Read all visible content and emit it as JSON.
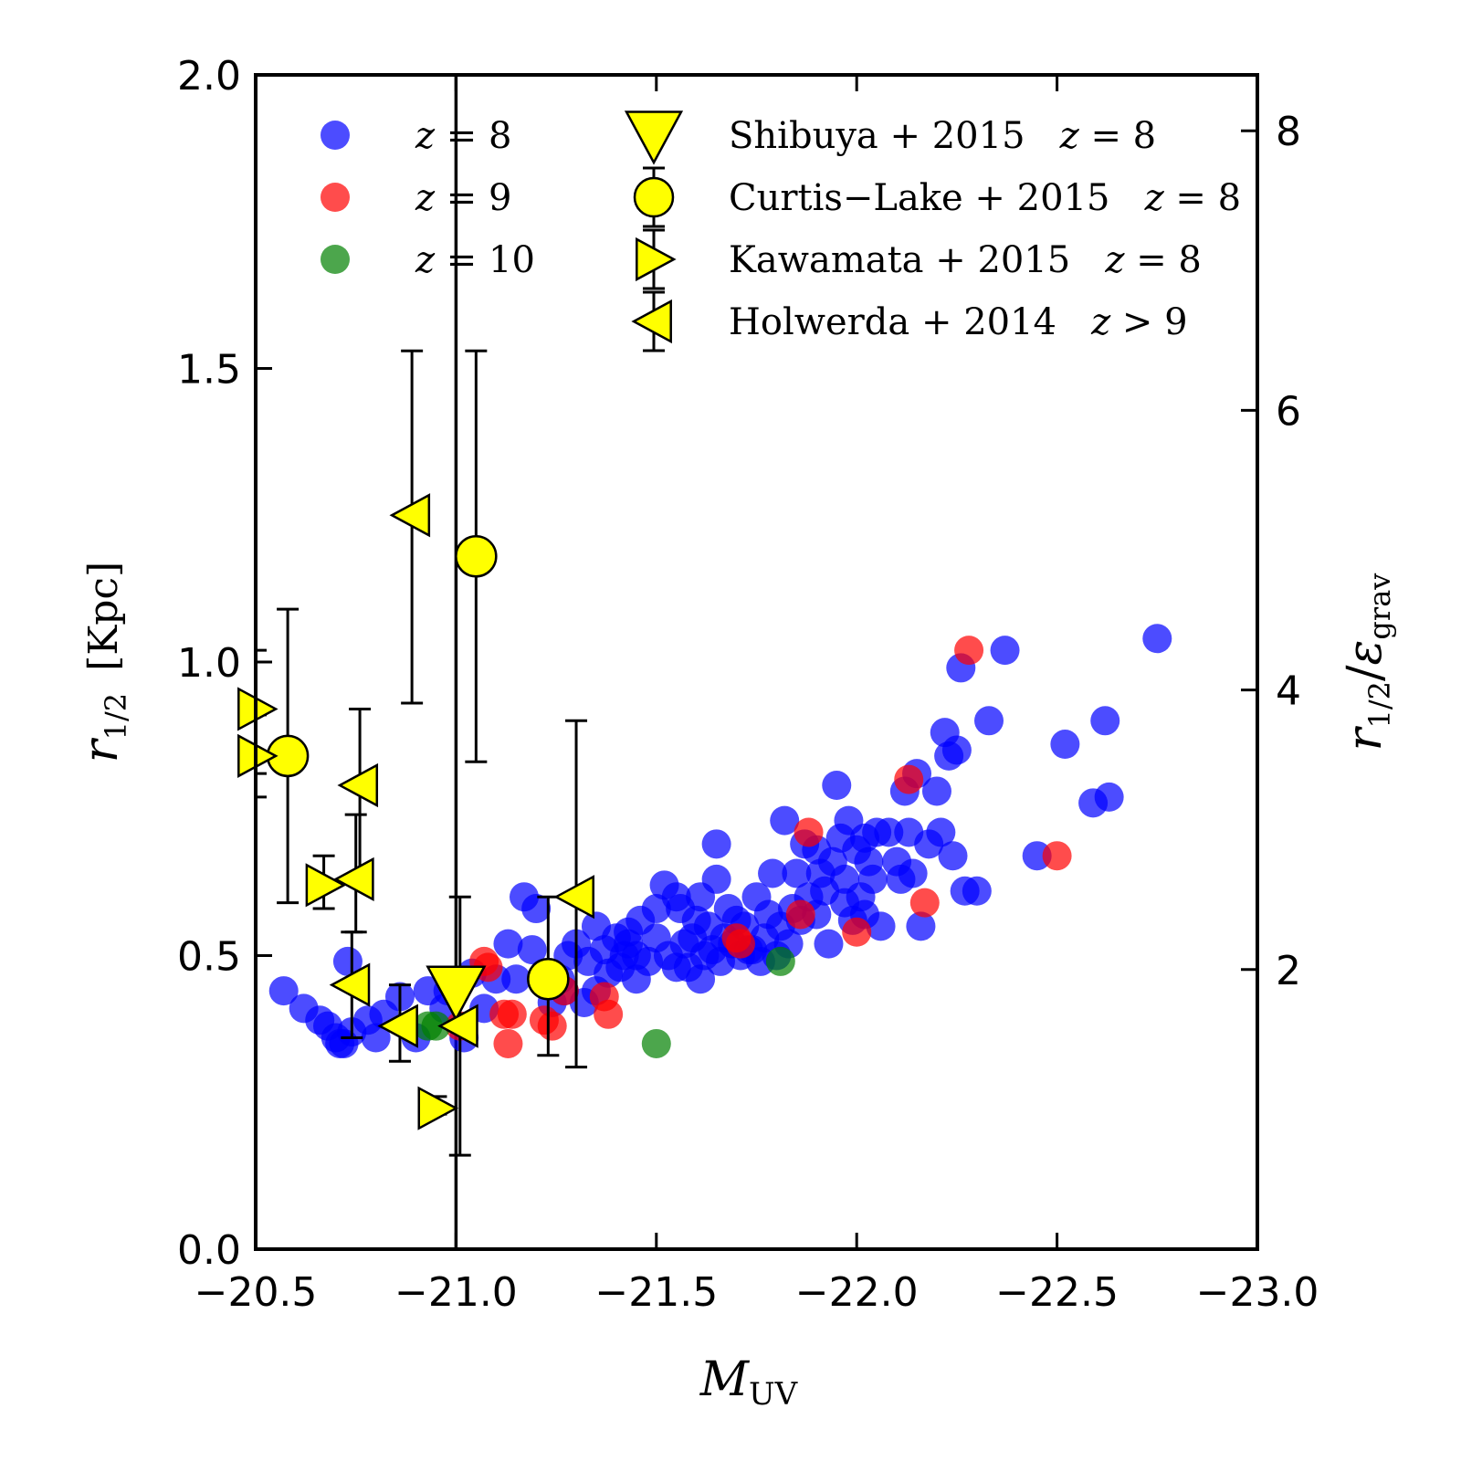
{
  "chart_data": {
    "type": "scatter",
    "xlabel": "M",
    "xlabel_sub": "UV",
    "ylabel": "r",
    "ylabel_sub": "1/2",
    "ylabel_unit": "[Kpc]",
    "y2label": "r",
    "y2label_sub": "1/2",
    "y2label_den": "ε",
    "y2label_den_sub": "grav",
    "xlim": [
      -20.5,
      -23.0
    ],
    "ylim": [
      0.0,
      2.0
    ],
    "y2lim": [
      0.0,
      8.4
    ],
    "xticks": [
      "−20.5",
      "−21.0",
      "−21.5",
      "−22.0",
      "−22.5",
      "−23.0"
    ],
    "xtick_values": [
      -20.5,
      -21.0,
      -21.5,
      -22.0,
      -22.5,
      -23.0
    ],
    "yticks": [
      "0.0",
      "0.5",
      "1.0",
      "1.5",
      "2.0"
    ],
    "ytick_values": [
      0.0,
      0.5,
      1.0,
      1.5,
      2.0
    ],
    "y2ticks": [
      "2",
      "4",
      "6",
      "8"
    ],
    "y2tick_values": [
      2,
      4,
      6,
      8
    ],
    "vertical_line_x": -21.0,
    "colors": {
      "z8": "#0000ff",
      "z9": "#ff0000",
      "z10": "#008000",
      "observed": "#ffff00",
      "axis": "#000000"
    },
    "legend": [
      {
        "key": "z8",
        "label": "z = 8"
      },
      {
        "key": "z9",
        "label": "z = 9"
      },
      {
        "key": "z10",
        "label": "z = 10"
      },
      {
        "key": "shibuya",
        "label": "Shibuya + 2015   z = 8"
      },
      {
        "key": "curtis",
        "label": "Curtis−Lake + 2015   z = 8"
      },
      {
        "key": "kawamata",
        "label": "Kawamata + 2015   z = 8"
      },
      {
        "key": "holwerda",
        "label": "Holwerda + 2014   z > 9"
      }
    ],
    "series": [
      {
        "name": "z = 8",
        "key": "z8",
        "points": [
          [
            -20.57,
            0.44
          ],
          [
            -20.62,
            0.41
          ],
          [
            -20.66,
            0.39
          ],
          [
            -20.68,
            0.38
          ],
          [
            -20.7,
            0.36
          ],
          [
            -20.71,
            0.35
          ],
          [
            -20.72,
            0.35
          ],
          [
            -20.73,
            0.49
          ],
          [
            -20.74,
            0.37
          ],
          [
            -20.78,
            0.39
          ],
          [
            -20.8,
            0.36
          ],
          [
            -20.82,
            0.4
          ],
          [
            -20.86,
            0.43
          ],
          [
            -20.9,
            0.36
          ],
          [
            -20.93,
            0.44
          ],
          [
            -20.97,
            0.41
          ],
          [
            -20.98,
            0.44
          ],
          [
            -21.0,
            0.45
          ],
          [
            -21.02,
            0.36
          ],
          [
            -21.04,
            0.47
          ],
          [
            -21.07,
            0.41
          ],
          [
            -21.1,
            0.46
          ],
          [
            -21.13,
            0.52
          ],
          [
            -21.15,
            0.46
          ],
          [
            -21.17,
            0.6
          ],
          [
            -21.19,
            0.51
          ],
          [
            -21.2,
            0.58
          ],
          [
            -21.22,
            0.47
          ],
          [
            -21.24,
            0.42
          ],
          [
            -21.26,
            0.46
          ],
          [
            -21.27,
            0.44
          ],
          [
            -21.28,
            0.5
          ],
          [
            -21.3,
            0.52
          ],
          [
            -21.32,
            0.42
          ],
          [
            -21.33,
            0.49
          ],
          [
            -21.35,
            0.55
          ],
          [
            -21.37,
            0.51
          ],
          [
            -21.38,
            0.47
          ],
          [
            -21.4,
            0.53
          ],
          [
            -21.41,
            0.48
          ],
          [
            -21.42,
            0.5
          ],
          [
            -21.43,
            0.54
          ],
          [
            -21.45,
            0.5
          ],
          [
            -21.46,
            0.56
          ],
          [
            -21.48,
            0.49
          ],
          [
            -21.5,
            0.53
          ],
          [
            -21.52,
            0.62
          ],
          [
            -21.53,
            0.5
          ],
          [
            -21.55,
            0.48
          ],
          [
            -21.56,
            0.58
          ],
          [
            -21.57,
            0.52
          ],
          [
            -21.58,
            0.48
          ],
          [
            -21.59,
            0.53
          ],
          [
            -21.6,
            0.56
          ],
          [
            -21.61,
            0.46
          ],
          [
            -21.62,
            0.5
          ],
          [
            -21.63,
            0.55
          ],
          [
            -21.64,
            0.51
          ],
          [
            -21.65,
            0.63
          ],
          [
            -21.65,
            0.69
          ],
          [
            -21.66,
            0.49
          ],
          [
            -21.67,
            0.53
          ],
          [
            -21.68,
            0.58
          ],
          [
            -21.69,
            0.52
          ],
          [
            -21.7,
            0.56
          ],
          [
            -21.71,
            0.5
          ],
          [
            -21.72,
            0.55
          ],
          [
            -21.73,
            0.51
          ],
          [
            -21.75,
            0.6
          ],
          [
            -21.76,
            0.49
          ],
          [
            -21.77,
            0.53
          ],
          [
            -21.78,
            0.57
          ],
          [
            -21.79,
            0.64
          ],
          [
            -21.8,
            0.5
          ],
          [
            -21.81,
            0.55
          ],
          [
            -21.82,
            0.73
          ],
          [
            -21.83,
            0.52
          ],
          [
            -21.84,
            0.58
          ],
          [
            -21.85,
            0.64
          ],
          [
            -21.86,
            0.56
          ],
          [
            -21.87,
            0.69
          ],
          [
            -21.88,
            0.6
          ],
          [
            -21.9,
            0.57
          ],
          [
            -21.91,
            0.64
          ],
          [
            -21.92,
            0.61
          ],
          [
            -21.93,
            0.52
          ],
          [
            -21.94,
            0.66
          ],
          [
            -21.95,
            0.79
          ],
          [
            -21.96,
            0.7
          ],
          [
            -21.97,
            0.63
          ],
          [
            -21.98,
            0.73
          ],
          [
            -21.99,
            0.56
          ],
          [
            -22.0,
            0.68
          ],
          [
            -22.01,
            0.6
          ],
          [
            -22.02,
            0.57
          ],
          [
            -22.03,
            0.66
          ],
          [
            -22.04,
            0.63
          ],
          [
            -22.05,
            0.71
          ],
          [
            -22.06,
            0.55
          ],
          [
            -22.08,
            0.71
          ],
          [
            -22.1,
            0.66
          ],
          [
            -22.11,
            0.63
          ],
          [
            -22.12,
            0.78
          ],
          [
            -22.13,
            0.71
          ],
          [
            -22.14,
            0.64
          ],
          [
            -22.15,
            0.81
          ],
          [
            -22.16,
            0.55
          ],
          [
            -22.18,
            0.69
          ],
          [
            -22.2,
            0.78
          ],
          [
            -22.21,
            0.71
          ],
          [
            -22.22,
            0.88
          ],
          [
            -22.23,
            0.84
          ],
          [
            -22.24,
            0.67
          ],
          [
            -22.25,
            0.85
          ],
          [
            -22.26,
            0.99
          ],
          [
            -22.27,
            0.61
          ],
          [
            -22.3,
            0.61
          ],
          [
            -22.33,
            0.9
          ],
          [
            -22.37,
            1.02
          ],
          [
            -22.45,
            0.67
          ],
          [
            -22.52,
            0.86
          ],
          [
            -22.59,
            0.76
          ],
          [
            -22.62,
            0.9
          ],
          [
            -22.63,
            0.77
          ],
          [
            -22.75,
            1.04
          ],
          [
            -21.5,
            0.58
          ],
          [
            -21.45,
            0.46
          ],
          [
            -21.35,
            0.44
          ],
          [
            -21.55,
            0.6
          ],
          [
            -21.9,
            0.68
          ],
          [
            -22.02,
            0.7
          ],
          [
            -21.97,
            0.59
          ],
          [
            -21.74,
            0.51
          ],
          [
            -21.43,
            0.52
          ],
          [
            -21.61,
            0.6
          ]
        ]
      },
      {
        "name": "z = 9",
        "key": "z9",
        "points": [
          [
            -21.01,
            0.38
          ],
          [
            -21.07,
            0.49
          ],
          [
            -21.08,
            0.48
          ],
          [
            -21.12,
            0.4
          ],
          [
            -21.13,
            0.35
          ],
          [
            -21.14,
            0.4
          ],
          [
            -21.22,
            0.39
          ],
          [
            -21.24,
            0.38
          ],
          [
            -21.27,
            0.44
          ],
          [
            -21.37,
            0.43
          ],
          [
            -21.38,
            0.4
          ],
          [
            -21.7,
            0.53
          ],
          [
            -21.71,
            0.52
          ],
          [
            -21.86,
            0.57
          ],
          [
            -21.88,
            0.71
          ],
          [
            -22.0,
            0.54
          ],
          [
            -22.13,
            0.8
          ],
          [
            -22.17,
            0.59
          ],
          [
            -22.28,
            1.02
          ],
          [
            -22.5,
            0.67
          ]
        ]
      },
      {
        "name": "z = 10",
        "key": "z10",
        "points": [
          [
            -20.93,
            0.38
          ],
          [
            -20.95,
            0.38
          ],
          [
            -21.5,
            0.35
          ],
          [
            -21.81,
            0.49
          ]
        ]
      }
    ],
    "observations": [
      {
        "name": "Shibuya + 2015   z = 8",
        "key": "shibuya",
        "marker": "triangle-down",
        "points": [
          {
            "x": -21.0,
            "y": 0.44,
            "ylo": 0.44,
            "yhi": 0.44
          }
        ]
      },
      {
        "name": "Curtis−Lake + 2015   z = 8",
        "key": "curtis",
        "marker": "circle",
        "points": [
          {
            "x": -20.58,
            "y": 0.84,
            "ylo": 0.59,
            "yhi": 1.09
          },
          {
            "x": -21.05,
            "y": 1.18,
            "ylo": 0.83,
            "yhi": 1.53
          },
          {
            "x": -21.23,
            "y": 0.46,
            "ylo": 0.33,
            "yhi": 0.6
          }
        ]
      },
      {
        "name": "Kawamata + 2015   z = 8",
        "key": "kawamata",
        "marker": "triangle-right",
        "points": [
          {
            "x": -20.5,
            "y": 0.92,
            "ylo": 0.81,
            "yhi": 1.02
          },
          {
            "x": -20.5,
            "y": 0.84,
            "ylo": 0.77,
            "yhi": 0.91
          },
          {
            "x": -20.67,
            "y": 0.62,
            "ylo": 0.58,
            "yhi": 0.67
          },
          {
            "x": -20.95,
            "y": 0.24,
            "ylo": 0.23,
            "yhi": 0.26
          }
        ]
      },
      {
        "name": "Holwerda + 2014   z > 9",
        "key": "holwerda",
        "marker": "triangle-left",
        "points": [
          {
            "x": -20.89,
            "y": 1.25,
            "ylo": 0.93,
            "yhi": 1.53
          },
          {
            "x": -20.76,
            "y": 0.79,
            "ylo": 0.63,
            "yhi": 0.92
          },
          {
            "x": -20.75,
            "y": 0.63,
            "ylo": 0.54,
            "yhi": 0.74
          },
          {
            "x": -20.74,
            "y": 0.45,
            "ylo": 0.36,
            "yhi": 0.54
          },
          {
            "x": -20.86,
            "y": 0.38,
            "ylo": 0.32,
            "yhi": 0.45
          },
          {
            "x": -21.01,
            "y": 0.38,
            "ylo": 0.16,
            "yhi": 0.6
          },
          {
            "x": -21.3,
            "y": 0.6,
            "ylo": 0.31,
            "yhi": 0.9
          }
        ]
      }
    ]
  }
}
